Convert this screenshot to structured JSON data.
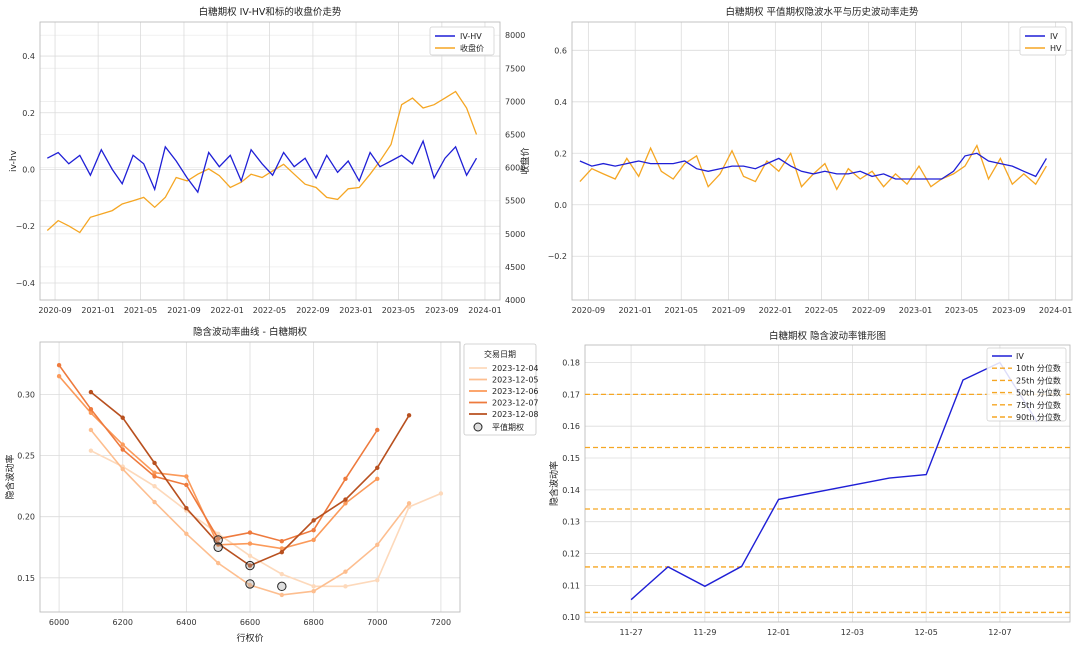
{
  "chart_data": [
    {
      "type": "line",
      "title": "白糖期权 IV-HV和标的收盘价走势",
      "xlabel": "",
      "ylabel": "iv-hv",
      "y2label": "收盘价",
      "x_ticks": [
        "2020-09",
        "2021-01",
        "2021-05",
        "2021-09",
        "2022-01",
        "2022-05",
        "2022-09",
        "2023-01",
        "2023-05",
        "2023-09",
        "2024-01"
      ],
      "ylim": [
        -0.46,
        0.52
      ],
      "y_ticks": [
        -0.4,
        -0.2,
        0.0,
        0.2,
        0.4
      ],
      "y_tick_labels": [
        "−0.4",
        "−0.2",
        "0.0",
        "0.2",
        "0.4"
      ],
      "y2lim": [
        4000,
        8200
      ],
      "y2_ticks": [
        4000,
        4500,
        5000,
        5500,
        6000,
        6500,
        7000,
        7500,
        8000
      ],
      "grid": true,
      "legend": "top-right",
      "colors": {
        "iv_hv": "#1f1fd6",
        "close": "#f5a623",
        "left_axis": "#1f77b4",
        "right_axis": "#e8182b"
      },
      "series": [
        {
          "name": "IV-HV",
          "x": [
            "2020-08-10",
            "2020-09-10",
            "2020-10-10",
            "2020-11-10",
            "2020-12-10",
            "2021-01-10",
            "2021-02-10",
            "2021-03-10",
            "2021-04-10",
            "2021-05-10",
            "2021-06-10",
            "2021-07-10",
            "2021-08-10",
            "2021-09-10",
            "2021-10-10",
            "2021-11-10",
            "2021-12-10",
            "2022-01-10",
            "2022-02-10",
            "2022-03-10",
            "2022-04-10",
            "2022-05-10",
            "2022-06-10",
            "2022-07-10",
            "2022-08-10",
            "2022-09-10",
            "2022-10-10",
            "2022-11-10",
            "2022-12-10",
            "2023-01-10",
            "2023-02-10",
            "2023-03-10",
            "2023-04-10",
            "2023-05-10",
            "2023-06-10",
            "2023-07-10",
            "2023-08-10",
            "2023-09-10",
            "2023-10-10",
            "2023-11-10",
            "2023-12-08"
          ],
          "values": [
            0.04,
            0.06,
            0.02,
            0.05,
            -0.02,
            0.07,
            0.0,
            -0.05,
            0.05,
            0.02,
            -0.07,
            0.08,
            0.03,
            -0.03,
            -0.08,
            0.06,
            0.01,
            0.05,
            -0.04,
            0.07,
            0.02,
            -0.02,
            0.06,
            0.01,
            0.04,
            -0.03,
            0.05,
            -0.01,
            0.03,
            -0.04,
            0.06,
            0.01,
            0.03,
            0.05,
            0.02,
            0.1,
            -0.03,
            0.04,
            0.08,
            -0.02,
            0.04
          ]
        },
        {
          "name": "收盘价",
          "x": [
            "2020-08-10",
            "2020-09-10",
            "2020-10-10",
            "2020-11-10",
            "2020-12-10",
            "2021-01-10",
            "2021-02-10",
            "2021-03-10",
            "2021-04-10",
            "2021-05-10",
            "2021-06-10",
            "2021-07-10",
            "2021-08-10",
            "2021-09-10",
            "2021-10-10",
            "2021-11-10",
            "2021-12-10",
            "2022-01-10",
            "2022-02-10",
            "2022-03-10",
            "2022-04-10",
            "2022-05-10",
            "2022-06-10",
            "2022-07-10",
            "2022-08-10",
            "2022-09-10",
            "2022-10-10",
            "2022-11-10",
            "2022-12-10",
            "2023-01-10",
            "2023-02-10",
            "2023-03-10",
            "2023-04-10",
            "2023-05-10",
            "2023-06-10",
            "2023-07-10",
            "2023-08-10",
            "2023-09-10",
            "2023-10-10",
            "2023-11-10",
            "2023-12-08"
          ],
          "values": [
            5050,
            5200,
            5120,
            5020,
            5250,
            5300,
            5350,
            5450,
            5500,
            5550,
            5400,
            5550,
            5850,
            5800,
            5900,
            5980,
            5880,
            5700,
            5780,
            5900,
            5850,
            5950,
            6050,
            5900,
            5750,
            5700,
            5550,
            5520,
            5680,
            5700,
            5900,
            6100,
            6350,
            6950,
            7050,
            6900,
            6950,
            7050,
            7150,
            6900,
            6500
          ]
        }
      ]
    },
    {
      "type": "line",
      "title": "白糖期权 平值期权隐波水平与历史波动率走势",
      "xlabel": "",
      "ylabel": "",
      "x_ticks": [
        "2020-09",
        "2021-01",
        "2021-05",
        "2021-09",
        "2022-01",
        "2022-05",
        "2022-09",
        "2023-01",
        "2023-05",
        "2023-09",
        "2024-01"
      ],
      "ylim": [
        -0.37,
        0.71
      ],
      "y_ticks": [
        -0.2,
        0.0,
        0.2,
        0.4,
        0.6
      ],
      "y_tick_labels": [
        "−0.2",
        "0.0",
        "0.2",
        "0.4",
        "0.6"
      ],
      "grid": true,
      "legend": "top-right",
      "colors": {
        "IV": "#1f1fd6",
        "HV": "#f5a623"
      },
      "series": [
        {
          "name": "IV",
          "x": [
            "2020-08-10",
            "2020-09-10",
            "2020-10-10",
            "2020-11-10",
            "2020-12-10",
            "2021-01-10",
            "2021-02-10",
            "2021-03-10",
            "2021-04-10",
            "2021-05-10",
            "2021-06-10",
            "2021-07-10",
            "2021-08-10",
            "2021-09-10",
            "2021-10-10",
            "2021-11-10",
            "2021-12-10",
            "2022-01-10",
            "2022-02-10",
            "2022-03-10",
            "2022-04-10",
            "2022-05-10",
            "2022-06-10",
            "2022-07-10",
            "2022-08-10",
            "2022-09-10",
            "2022-10-10",
            "2022-11-10",
            "2022-12-10",
            "2023-01-10",
            "2023-02-10",
            "2023-03-10",
            "2023-04-10",
            "2023-05-10",
            "2023-06-10",
            "2023-07-10",
            "2023-08-10",
            "2023-09-10",
            "2023-10-10",
            "2023-11-10",
            "2023-12-08"
          ],
          "values": [
            0.17,
            0.15,
            0.16,
            0.15,
            0.16,
            0.17,
            0.16,
            0.16,
            0.16,
            0.17,
            0.14,
            0.13,
            0.14,
            0.15,
            0.15,
            0.14,
            0.16,
            0.18,
            0.15,
            0.13,
            0.12,
            0.13,
            0.12,
            0.12,
            0.13,
            0.11,
            0.12,
            0.1,
            0.1,
            0.1,
            0.1,
            0.1,
            0.13,
            0.19,
            0.2,
            0.17,
            0.16,
            0.15,
            0.13,
            0.11,
            0.18
          ]
        },
        {
          "name": "HV",
          "x": [
            "2020-08-10",
            "2020-09-10",
            "2020-10-10",
            "2020-11-10",
            "2020-12-10",
            "2021-01-10",
            "2021-02-10",
            "2021-03-10",
            "2021-04-10",
            "2021-05-10",
            "2021-06-10",
            "2021-07-10",
            "2021-08-10",
            "2021-09-10",
            "2021-10-10",
            "2021-11-10",
            "2021-12-10",
            "2022-01-10",
            "2022-02-10",
            "2022-03-10",
            "2022-04-10",
            "2022-05-10",
            "2022-06-10",
            "2022-07-10",
            "2022-08-10",
            "2022-09-10",
            "2022-10-10",
            "2022-11-10",
            "2022-12-10",
            "2023-01-10",
            "2023-02-10",
            "2023-03-10",
            "2023-04-10",
            "2023-05-10",
            "2023-06-10",
            "2023-07-10",
            "2023-08-10",
            "2023-09-10",
            "2023-10-10",
            "2023-11-10",
            "2023-12-08"
          ],
          "values": [
            0.09,
            0.14,
            0.12,
            0.1,
            0.18,
            0.11,
            0.22,
            0.13,
            0.1,
            0.16,
            0.19,
            0.07,
            0.12,
            0.21,
            0.11,
            0.09,
            0.17,
            0.13,
            0.2,
            0.07,
            0.12,
            0.16,
            0.06,
            0.14,
            0.1,
            0.13,
            0.07,
            0.12,
            0.08,
            0.15,
            0.07,
            0.1,
            0.12,
            0.15,
            0.23,
            0.1,
            0.18,
            0.08,
            0.12,
            0.08,
            0.15
          ]
        }
      ]
    },
    {
      "type": "line",
      "title": "隐含波动率曲线 - 白糖期权",
      "xlabel": "行权价",
      "ylabel": "隐含波动率",
      "xlim": [
        5940,
        7260
      ],
      "x_ticks": [
        6000,
        6200,
        6400,
        6600,
        6800,
        7000,
        7200
      ],
      "ylim": [
        0.122,
        0.343
      ],
      "y_ticks": [
        0.15,
        0.2,
        0.25,
        0.3
      ],
      "grid": true,
      "legend_title": "交易日期",
      "legend": "outside-right",
      "atm_label": "平值期权",
      "series": [
        {
          "name": "2023-12-04",
          "color": "#fdd9bb",
          "x": [
            6100,
            6200,
            6300,
            6400,
            6500,
            6600,
            6700,
            6800,
            6900,
            7000,
            7100,
            7200
          ],
          "values": [
            0.254,
            0.241,
            0.225,
            0.205,
            0.186,
            0.168,
            0.153,
            0.143,
            0.143,
            0.148,
            0.208,
            0.219
          ]
        },
        {
          "name": "2023-12-05",
          "color": "#fdbe8f",
          "x": [
            6100,
            6200,
            6300,
            6400,
            6500,
            6600,
            6700,
            6800,
            6900,
            7000,
            7100
          ],
          "values": [
            0.271,
            0.239,
            0.212,
            0.186,
            0.162,
            0.144,
            0.136,
            0.139,
            0.155,
            0.177,
            0.211
          ]
        },
        {
          "name": "2023-12-06",
          "color": "#fb9a5a",
          "x": [
            6000,
            6100,
            6200,
            6300,
            6400,
            6500,
            6600,
            6700,
            6800,
            6900,
            7000
          ],
          "values": [
            0.315,
            0.285,
            0.259,
            0.236,
            0.233,
            0.177,
            0.178,
            0.174,
            0.181,
            0.211,
            0.231
          ]
        },
        {
          "name": "2023-12-07",
          "color": "#ee7a3d",
          "x": [
            6000,
            6100,
            6200,
            6300,
            6400,
            6500,
            6600,
            6700,
            6800,
            6900,
            7000
          ],
          "values": [
            0.324,
            0.288,
            0.255,
            0.233,
            0.226,
            0.182,
            0.187,
            0.18,
            0.189,
            0.231,
            0.271
          ]
        },
        {
          "name": "2023-12-08",
          "color": "#b8501f",
          "x": [
            6100,
            6200,
            6300,
            6400,
            6500,
            6600,
            6700,
            6800,
            6900,
            7000,
            7100
          ],
          "values": [
            0.302,
            0.281,
            0.244,
            0.207,
            0.178,
            0.16,
            0.171,
            0.197,
            0.214,
            0.24,
            0.283
          ]
        }
      ],
      "atm_points": [
        {
          "x": 6500,
          "y": 0.181
        },
        {
          "x": 6500,
          "y": 0.175
        },
        {
          "x": 6600,
          "y": 0.16
        },
        {
          "x": 6600,
          "y": 0.145
        },
        {
          "x": 6700,
          "y": 0.143
        }
      ]
    },
    {
      "type": "line",
      "title": "白糖期权 隐含波动率锥形图",
      "xlabel": "",
      "ylabel": "隐含波动率",
      "x_ticks": [
        "11-27",
        "11-29",
        "12-01",
        "12-03",
        "12-05",
        "12-07"
      ],
      "ylim": [
        0.0985,
        0.1855
      ],
      "y_ticks": [
        0.1,
        0.11,
        0.12,
        0.13,
        0.14,
        0.15,
        0.16,
        0.17,
        0.18
      ],
      "y_tick_labels": [
        "0.10",
        "0.11",
        "0.12",
        "0.13",
        "0.14",
        "0.15",
        "0.16",
        "0.17",
        "0.18"
      ],
      "grid": true,
      "legend": "top-right",
      "series": [
        {
          "name": "IV",
          "color": "#1f1fd6",
          "x": [
            "2023-11-27",
            "2023-11-28",
            "2023-11-29",
            "2023-11-30",
            "2023-12-01",
            "2023-12-04",
            "2023-12-05",
            "2023-12-06",
            "2023-12-07",
            "2023-12-08"
          ],
          "values": [
            0.1055,
            0.1158,
            0.1097,
            0.116,
            0.137,
            0.1437,
            0.1448,
            0.1745,
            0.18,
            0.1615
          ]
        }
      ],
      "percentiles": [
        {
          "name": "10th 分位数",
          "value": 0.1015
        },
        {
          "name": "25th 分位数",
          "value": 0.1158
        },
        {
          "name": "50th 分位数",
          "value": 0.134
        },
        {
          "name": "75th 分位数",
          "value": 0.1533
        },
        {
          "name": "90th 分位数",
          "value": 0.17
        }
      ],
      "percentile_color": "#f5a623"
    }
  ]
}
